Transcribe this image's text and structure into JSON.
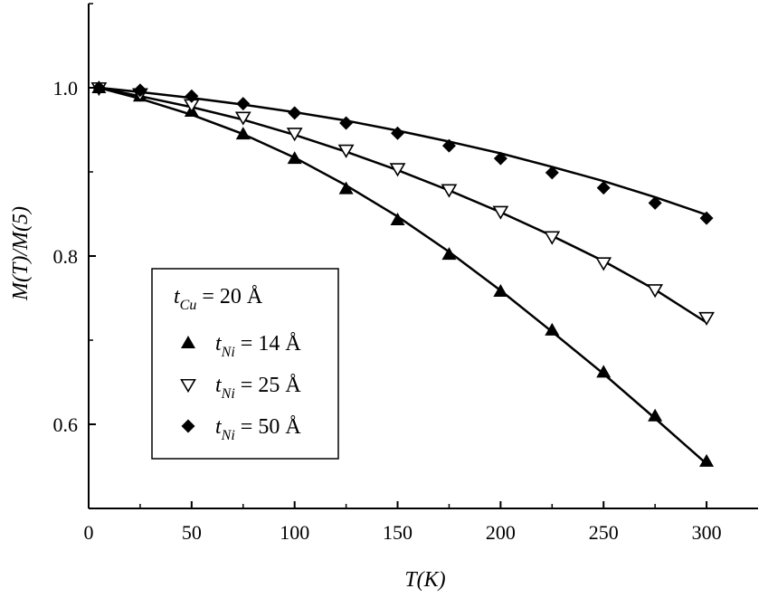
{
  "chart_data": {
    "type": "scatter",
    "title": "",
    "xlabel": "T(K)",
    "ylabel": "M(T)/M(5)",
    "xlim": [
      0,
      325
    ],
    "ylim": [
      0.5,
      1.1
    ],
    "xticks": [
      0,
      50,
      100,
      150,
      200,
      250,
      300
    ],
    "xtick_labels": [
      "0",
      "50",
      "100",
      "150",
      "200",
      "250",
      "300"
    ],
    "yticks": [
      0.6,
      0.8,
      1.0
    ],
    "ytick_labels": [
      "0.6",
      "0.8",
      "1.0"
    ],
    "grid": false,
    "legend_position": "lower-left",
    "legend_header": {
      "var": "t",
      "sub": "Cu",
      "text": " = 20 Å"
    },
    "series": [
      {
        "name": "t_Ni = 14 Å",
        "legend_var": "t",
        "legend_sub": "Ni",
        "legend_text": " = 14 Å",
        "marker": "filled-triangle-up",
        "x": [
          5,
          25,
          50,
          75,
          100,
          125,
          150,
          175,
          200,
          225,
          250,
          275,
          300
        ],
        "y": [
          1.0,
          0.99,
          0.972,
          0.945,
          0.916,
          0.88,
          0.843,
          0.802,
          0.758,
          0.712,
          0.662,
          0.61,
          0.556
        ],
        "fit_y": [
          1.0,
          0.987,
          0.968,
          0.945,
          0.917,
          0.884,
          0.847,
          0.805,
          0.759,
          0.71,
          0.66,
          0.607,
          0.553
        ]
      },
      {
        "name": "t_Ni = 25 Å",
        "legend_var": "t",
        "legend_sub": "Ni",
        "legend_text": " = 25 Å",
        "marker": "open-triangle-down",
        "x": [
          5,
          25,
          50,
          75,
          100,
          125,
          150,
          175,
          200,
          225,
          250,
          275,
          300
        ],
        "y": [
          1.0,
          0.993,
          0.98,
          0.965,
          0.946,
          0.926,
          0.904,
          0.879,
          0.853,
          0.823,
          0.792,
          0.76,
          0.727
        ],
        "fit_y": [
          1.0,
          0.99,
          0.977,
          0.962,
          0.944,
          0.924,
          0.902,
          0.878,
          0.852,
          0.824,
          0.794,
          0.76,
          0.721
        ]
      },
      {
        "name": "t_Ni = 50 Å",
        "legend_var": "t",
        "legend_sub": "Ni",
        "legend_text": " = 50 Å",
        "marker": "filled-diamond",
        "x": [
          5,
          25,
          50,
          75,
          100,
          125,
          150,
          175,
          200,
          225,
          250,
          275,
          300
        ],
        "y": [
          1.0,
          0.997,
          0.99,
          0.981,
          0.97,
          0.958,
          0.946,
          0.931,
          0.916,
          0.899,
          0.881,
          0.863,
          0.845
        ],
        "fit_y": [
          1.0,
          0.995,
          0.988,
          0.98,
          0.971,
          0.961,
          0.949,
          0.936,
          0.922,
          0.906,
          0.889,
          0.87,
          0.849
        ]
      }
    ]
  }
}
